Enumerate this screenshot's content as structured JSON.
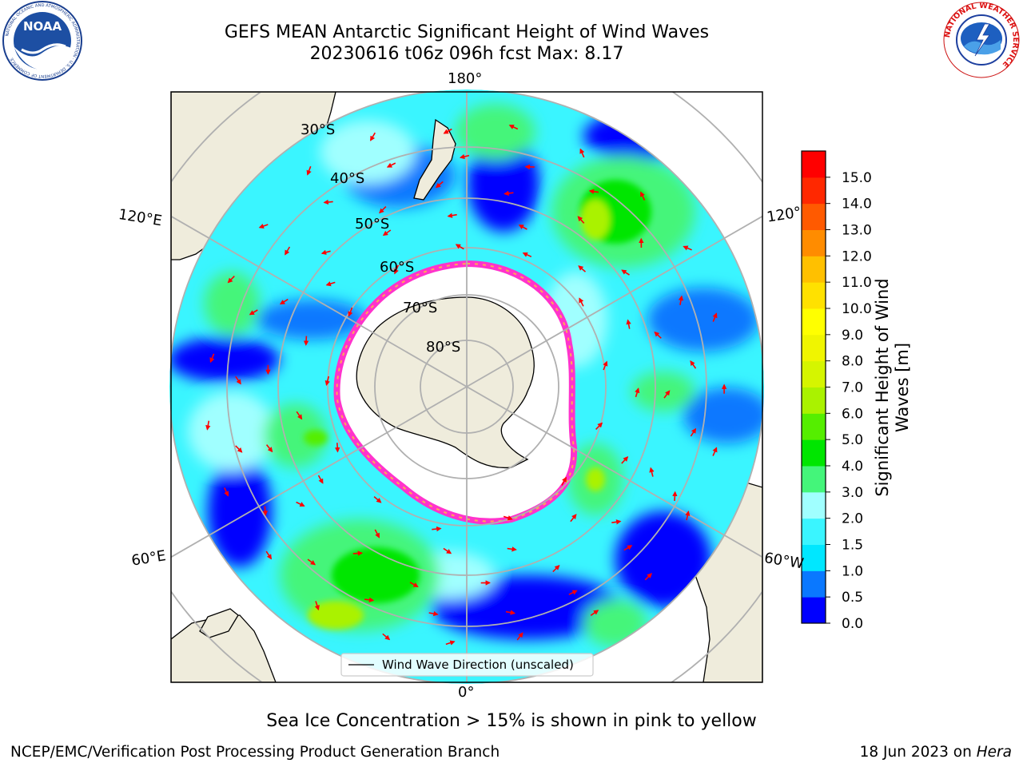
{
  "title": {
    "line1": "GEFS MEAN Antarctic Significant Height of Wind Waves",
    "line2": "20230616 t06z 096h fcst   Max: 8.17"
  },
  "logos": {
    "left": "NOAA",
    "left_ring_text": "NATIONAL OCEANIC AND ATMOSPHERIC ADMINISTRATION · U.S. DEPARTMENT OF COMMERCE",
    "right_ring_text": "NATIONAL WEATHER SERVICE"
  },
  "map": {
    "projection": "south-polar-stereographic",
    "longitude_labels": {
      "top": "180°",
      "bottom": "0°",
      "upper_left": "120°E",
      "lower_left": "60°E",
      "upper_right": "120°",
      "lower_right": "60°W"
    },
    "latitude_labels": [
      "30°S",
      "40°S",
      "50°S",
      "60°S",
      "70°S",
      "80°S"
    ],
    "legend_entry": "Wind Wave Direction (unscaled)",
    "arrow_color": "#ff0000",
    "land_color": "#efecdc",
    "ice_color": "#ffffff",
    "ice_edge_colors": [
      "#ff33cc",
      "#ffaa55",
      "#ffd97a"
    ]
  },
  "colorbar": {
    "label": "Significant Height of Wind Waves [m]",
    "ticks": [
      "0.0",
      "0.5",
      "1.0",
      "1.5",
      "2.0",
      "3.0",
      "4.0",
      "5.0",
      "6.0",
      "7.0",
      "8.0",
      "9.0",
      "10.0",
      "11.0",
      "12.0",
      "13.0",
      "14.0",
      "15.0"
    ],
    "colors": [
      "#0000ff",
      "#0a78ff",
      "#00e7ff",
      "#3af5ff",
      "#a0ffff",
      "#44f57a",
      "#00e600",
      "#55ee00",
      "#aaf200",
      "#d5f500",
      "#f0f500",
      "#ffff00",
      "#ffe100",
      "#ffc000",
      "#ff8c00",
      "#ff5a00",
      "#ff2800",
      "#ff0000"
    ]
  },
  "note": "Sea Ice Concentration > 15% is shown in pink to yellow",
  "footer": {
    "left": "NCEP/EMC/Verification Post Processing Product Generation Branch",
    "right_date": "18 Jun 2023 on ",
    "right_machine": "Hera"
  }
}
